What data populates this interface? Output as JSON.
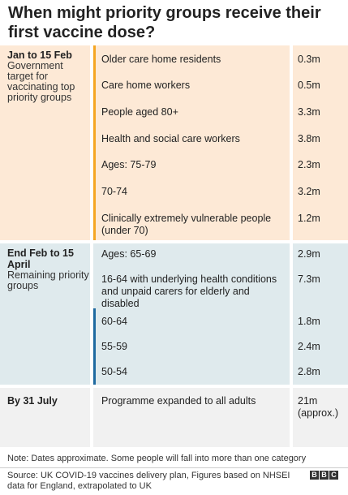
{
  "title": "When might priority groups receive their first vaccine dose?",
  "colors": {
    "section1_bg": "#fde9d6",
    "section1_bar": "#f5a623",
    "section2_bg": "#dfeaed",
    "section2_bar": "#1f6aa0",
    "section3_bg": "#f1f1f1"
  },
  "sections": [
    {
      "heading": "Jan to 15 Feb",
      "sub": "Government target for vaccinating top priority groups",
      "rows": [
        {
          "label": "Older care home residents",
          "value": "0.3m"
        },
        {
          "label": "Care home workers",
          "value": "0.5m"
        },
        {
          "label": "People aged 80+",
          "value": "3.3m"
        },
        {
          "label": "Health and social care workers",
          "value": "3.8m"
        },
        {
          "label": "Ages: 75-79",
          "value": "2.3m"
        },
        {
          "label": "70-74",
          "value": "3.2m"
        },
        {
          "label": "Clinically extremely vulnerable people (under 70)",
          "value": "1.2m"
        }
      ]
    },
    {
      "heading": "End Feb to 15 April",
      "sub": "Remaining priority groups",
      "rows": [
        {
          "label": "Ages: 65-69",
          "value": "2.9m"
        },
        {
          "label": "16-64 with underlying health conditions and unpaid carers for elderly and disabled",
          "value": "7.3m"
        },
        {
          "label": "60-64",
          "value": "1.8m"
        },
        {
          "label": "55-59",
          "value": "2.4m"
        },
        {
          "label": "50-54",
          "value": "2.8m"
        }
      ]
    },
    {
      "heading": "By 31 July",
      "rows": [
        {
          "label": "Programme expanded to all adults",
          "value": "21m (approx.)"
        }
      ]
    }
  ],
  "note": "Note: Dates approximate. Some people will fall into more than one category",
  "source": "Source: UK COVID-19 vaccines delivery plan, Figures based on NHSEI data for England, extrapolated to UK",
  "logo_text": "BBC"
}
